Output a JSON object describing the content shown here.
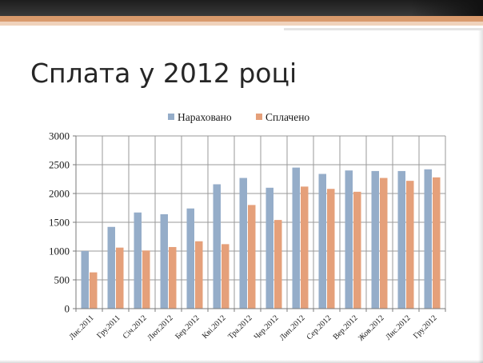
{
  "slide": {
    "title": "Сплата у 2012 році"
  },
  "colors": {
    "series_1": "#95adc9",
    "series_2": "#e5a07a",
    "accent_stripe": "#d99a6c",
    "top_bar": "#262626"
  },
  "chart_data": {
    "type": "bar",
    "title": "",
    "xlabel": "",
    "ylabel": "",
    "ylim": [
      0,
      3000
    ],
    "yticks": [
      0,
      500,
      1000,
      1500,
      2000,
      2500,
      3000
    ],
    "grid": true,
    "legend": "top",
    "categories": [
      "Лис.2011",
      "Гру.2011",
      "Січ.2012",
      "Лют.2012",
      "Бер.2012",
      "Кві.2012",
      "Тра.2012",
      "Чер.2012",
      "Лип.2012",
      "Сер.2012",
      "Вер.2012",
      "Жов.2012",
      "Лис.2012",
      "Гру.2012"
    ],
    "series": [
      {
        "name": "Нараховано",
        "color": "#95adc9",
        "values": [
          1000,
          1420,
          1670,
          1640,
          1740,
          2160,
          2270,
          2100,
          2450,
          2340,
          2400,
          2390,
          2390,
          2420
        ]
      },
      {
        "name": "Сплачено",
        "color": "#e5a07a",
        "values": [
          630,
          1060,
          1010,
          1070,
          1170,
          1120,
          1800,
          1540,
          2120,
          2080,
          2030,
          2270,
          2220,
          2280
        ]
      }
    ]
  }
}
